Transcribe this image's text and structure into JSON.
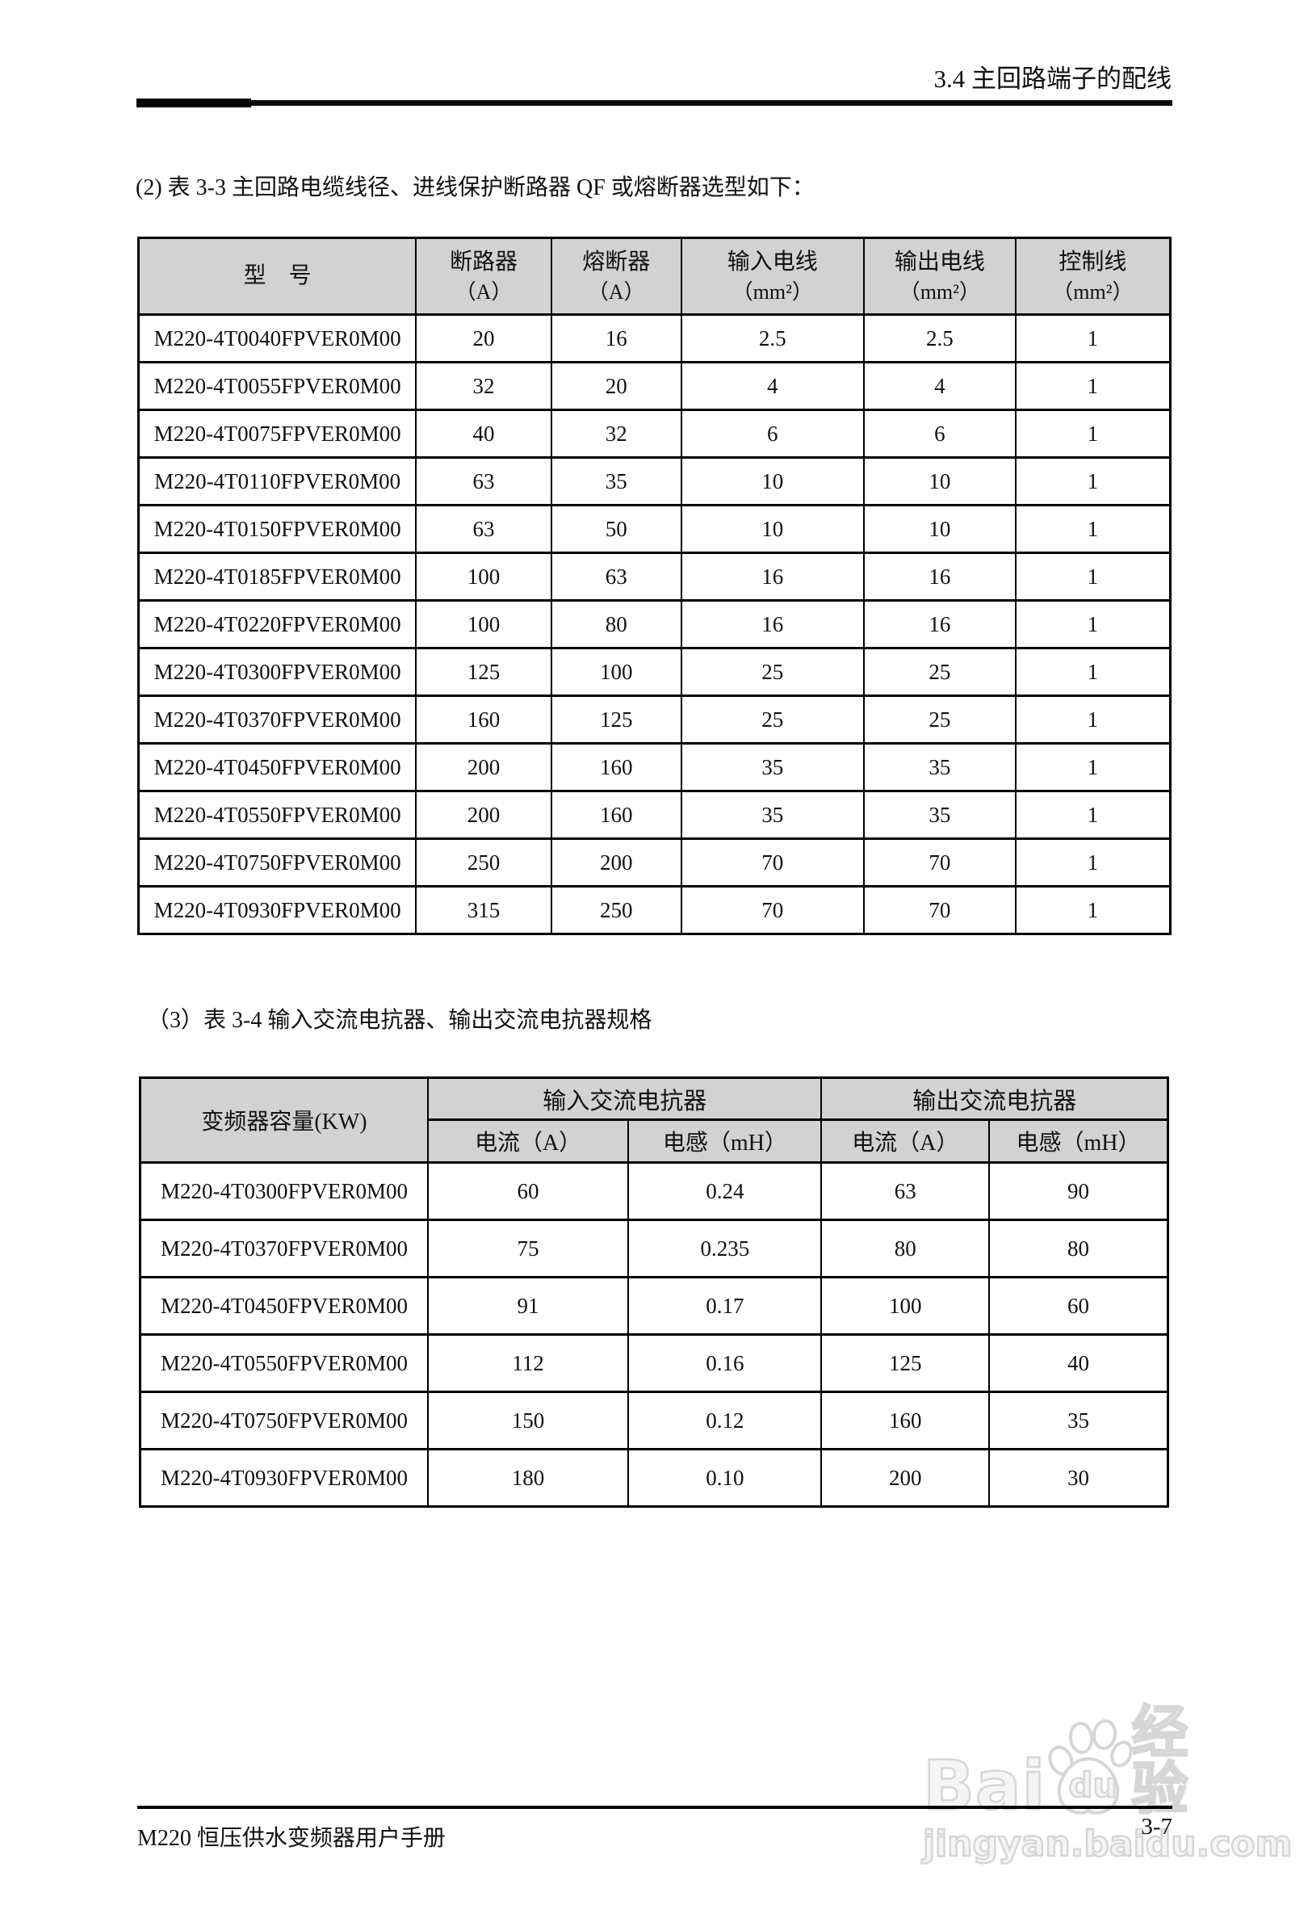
{
  "header": {
    "section_title": "3.4 主回路端子的配线"
  },
  "paragraphs": {
    "table3_3_intro": "(2) 表 3-3 主回路电缆线径、进线保护断路器 QF 或熔断器选型如下：",
    "table3_4_intro": "（3）表 3-4 输入交流电抗器、输出交流电抗器规格"
  },
  "table3_3": {
    "columns": [
      {
        "label": "型　号",
        "unit": ""
      },
      {
        "label": "断路器",
        "unit": "（A）"
      },
      {
        "label": "熔断器",
        "unit": "（A）"
      },
      {
        "label": "输入电线",
        "unit": "（mm²）"
      },
      {
        "label": "输出电线",
        "unit": "（mm²）"
      },
      {
        "label": "控制线",
        "unit": "（mm²）"
      }
    ],
    "rows": [
      [
        "M220-4T0040FPVER0M00",
        "20",
        "16",
        "2.5",
        "2.5",
        "1"
      ],
      [
        "M220-4T0055FPVER0M00",
        "32",
        "20",
        "4",
        "4",
        "1"
      ],
      [
        "M220-4T0075FPVER0M00",
        "40",
        "32",
        "6",
        "6",
        "1"
      ],
      [
        "M220-4T0110FPVER0M00",
        "63",
        "35",
        "10",
        "10",
        "1"
      ],
      [
        "M220-4T0150FPVER0M00",
        "63",
        "50",
        "10",
        "10",
        "1"
      ],
      [
        "M220-4T0185FPVER0M00",
        "100",
        "63",
        "16",
        "16",
        "1"
      ],
      [
        "M220-4T0220FPVER0M00",
        "100",
        "80",
        "16",
        "16",
        "1"
      ],
      [
        "M220-4T0300FPVER0M00",
        "125",
        "100",
        "25",
        "25",
        "1"
      ],
      [
        "M220-4T0370FPVER0M00",
        "160",
        "125",
        "25",
        "25",
        "1"
      ],
      [
        "M220-4T0450FPVER0M00",
        "200",
        "160",
        "35",
        "35",
        "1"
      ],
      [
        "M220-4T0550FPVER0M00",
        "200",
        "160",
        "35",
        "35",
        "1"
      ],
      [
        "M220-4T0750FPVER0M00",
        "250",
        "200",
        "70",
        "70",
        "1"
      ],
      [
        "M220-4T0930FPVER0M00",
        "315",
        "250",
        "70",
        "70",
        "1"
      ]
    ]
  },
  "table3_4": {
    "capacity_header": "变频器容量(KW)",
    "groups": [
      "输入交流电抗器",
      "输出交流电抗器"
    ],
    "sub_columns": [
      "电流（A）",
      "电感（mH）",
      "电流（A）",
      "电感（mH）"
    ],
    "rows": [
      [
        "M220-4T0300FPVER0M00",
        "60",
        "0.24",
        "63",
        "90"
      ],
      [
        "M220-4T0370FPVER0M00",
        "75",
        "0.235",
        "80",
        "80"
      ],
      [
        "M220-4T0450FPVER0M00",
        "91",
        "0.17",
        "100",
        "60"
      ],
      [
        "M220-4T0550FPVER0M00",
        "112",
        "0.16",
        "125",
        "40"
      ],
      [
        "M220-4T0750FPVER0M00",
        "150",
        "0.12",
        "160",
        "35"
      ],
      [
        "M220-4T0930FPVER0M00",
        "180",
        "0.10",
        "200",
        "30"
      ]
    ]
  },
  "footer": {
    "manual_title": "M220 恒压供水变频器用户手册",
    "page_number": "3-7"
  },
  "watermark": {
    "bai": "Bai",
    "du": "du",
    "jingyan_cn": "经验",
    "site": "jingyan.baidu.com"
  }
}
